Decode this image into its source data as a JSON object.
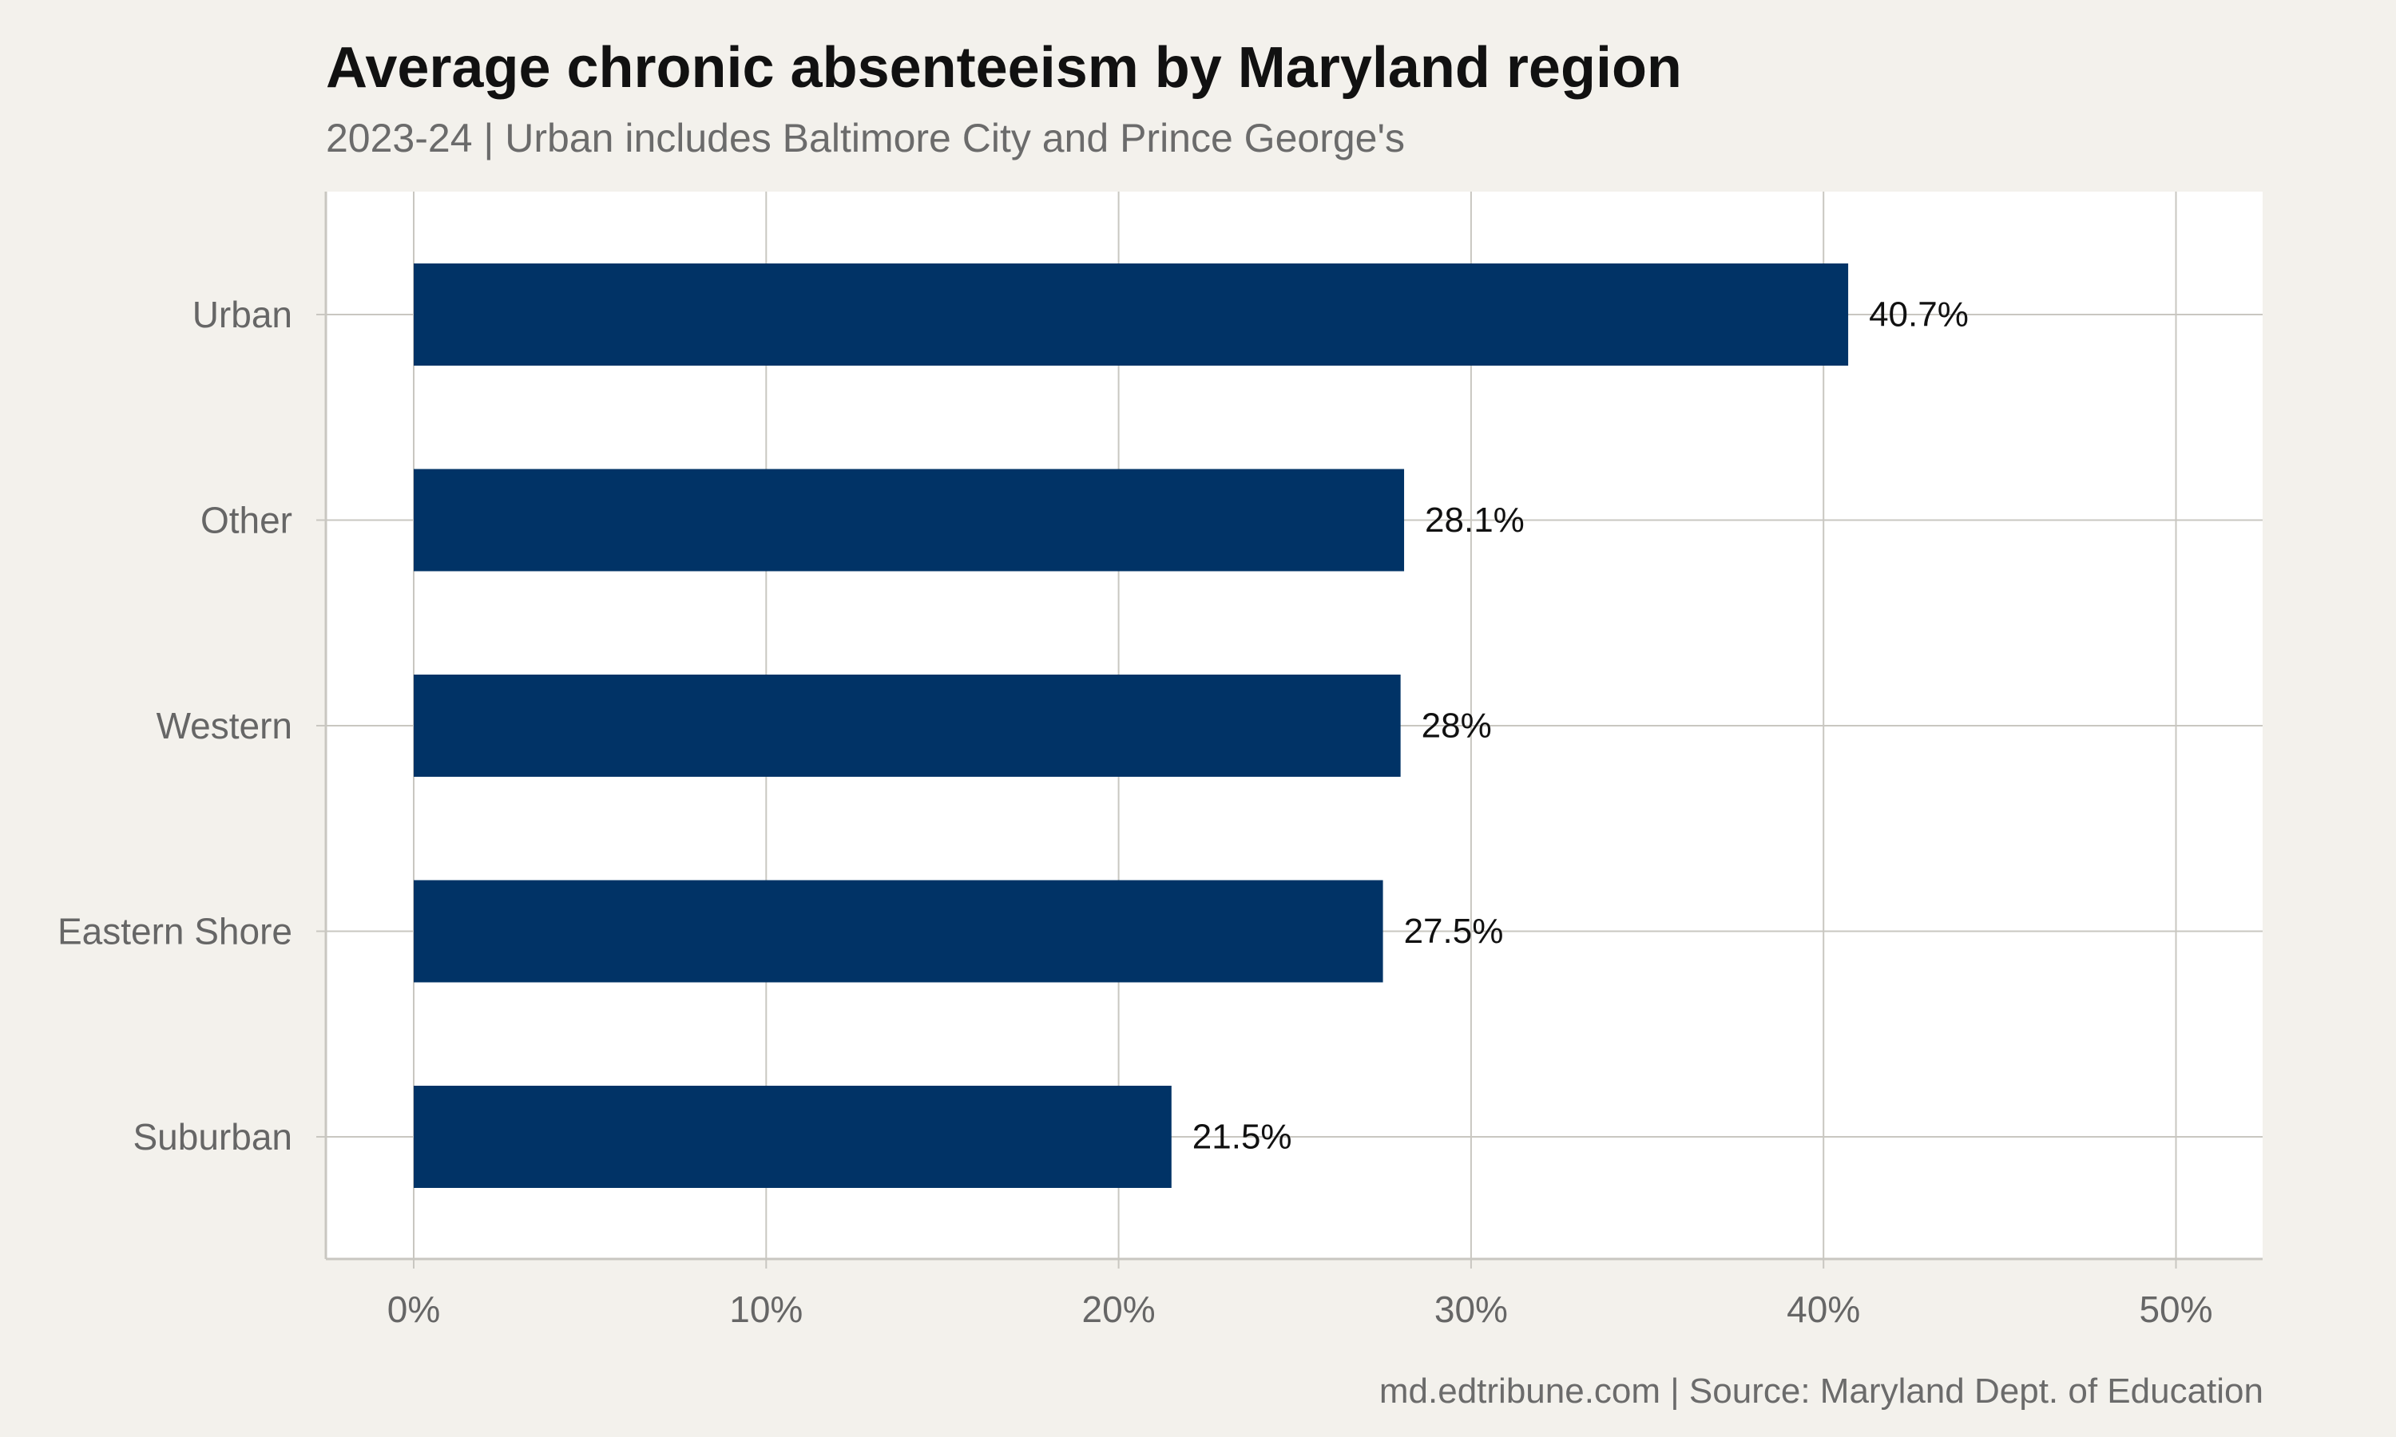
{
  "title": "Average chronic absenteeism by Maryland region",
  "subtitle": "2023-24 | Urban includes Baltimore City and Prince George's",
  "caption": "md.edtribune.com | Source: Maryland Dept. of Education",
  "colors": {
    "bar": "#013366",
    "background": "#f3f1ec",
    "panel": "#ffffff",
    "grid": "#c9c7c1"
  },
  "chart_data": {
    "type": "bar",
    "orientation": "horizontal",
    "categories": [
      "Urban",
      "Other",
      "Western",
      "Eastern Shore",
      "Suburban"
    ],
    "values": [
      40.7,
      28.1,
      28,
      27.5,
      21.5
    ],
    "value_labels": [
      "40.7%",
      "28.1%",
      "28%",
      "27.5%",
      "21.5%"
    ],
    "xlim": [
      0,
      50
    ],
    "x_ticks": [
      0,
      10,
      20,
      30,
      40,
      50
    ],
    "x_tick_labels": [
      "0%",
      "10%",
      "20%",
      "30%",
      "40%",
      "50%"
    ],
    "grid": true
  }
}
